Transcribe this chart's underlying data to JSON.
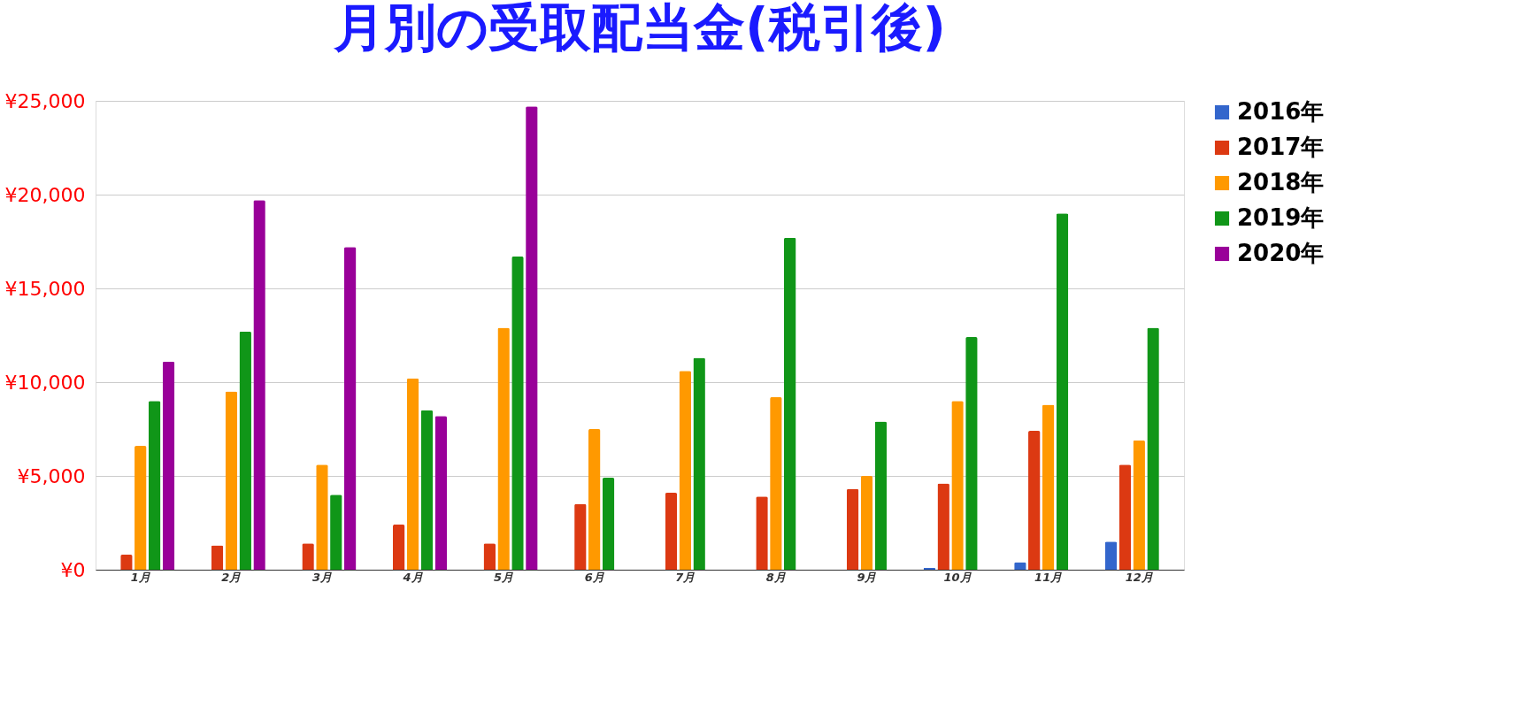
{
  "chart_data": {
    "type": "bar",
    "title": "月別の受取配当金(税引後)",
    "categories": [
      "1月",
      "2月",
      "3月",
      "4月",
      "5月",
      "6月",
      "7月",
      "8月",
      "9月",
      "10月",
      "11月",
      "12月"
    ],
    "series": [
      {
        "name": "2016年",
        "color": "#3366cc",
        "values": [
          null,
          null,
          null,
          null,
          null,
          null,
          null,
          null,
          null,
          100,
          400,
          1500
        ]
      },
      {
        "name": "2017年",
        "color": "#dc3912",
        "values": [
          800,
          1300,
          1400,
          2400,
          1400,
          3500,
          4100,
          3900,
          4300,
          4600,
          7400,
          5600
        ]
      },
      {
        "name": "2018年",
        "color": "#ff9900",
        "values": [
          6600,
          9500,
          5600,
          10200,
          12900,
          7500,
          10600,
          9200,
          5000,
          9000,
          8800,
          6900
        ]
      },
      {
        "name": "2019年",
        "color": "#109618",
        "values": [
          9000,
          12700,
          4000,
          8500,
          16700,
          4900,
          11300,
          17700,
          7900,
          12400,
          19000,
          12900
        ]
      },
      {
        "name": "2020年",
        "color": "#990099",
        "values": [
          11100,
          19700,
          17200,
          8200,
          24700,
          null,
          null,
          null,
          null,
          null,
          null,
          null
        ]
      }
    ],
    "ylim": [
      0,
      25000
    ],
    "yticks": [
      {
        "value": 0,
        "label": "¥0"
      },
      {
        "value": 5000,
        "label": "¥5,000"
      },
      {
        "value": 10000,
        "label": "¥10,000"
      },
      {
        "value": 15000,
        "label": "¥15,000"
      },
      {
        "value": 20000,
        "label": "¥20,000"
      },
      {
        "value": 25000,
        "label": "¥25,000"
      }
    ],
    "grid": "y",
    "legend": "right"
  }
}
